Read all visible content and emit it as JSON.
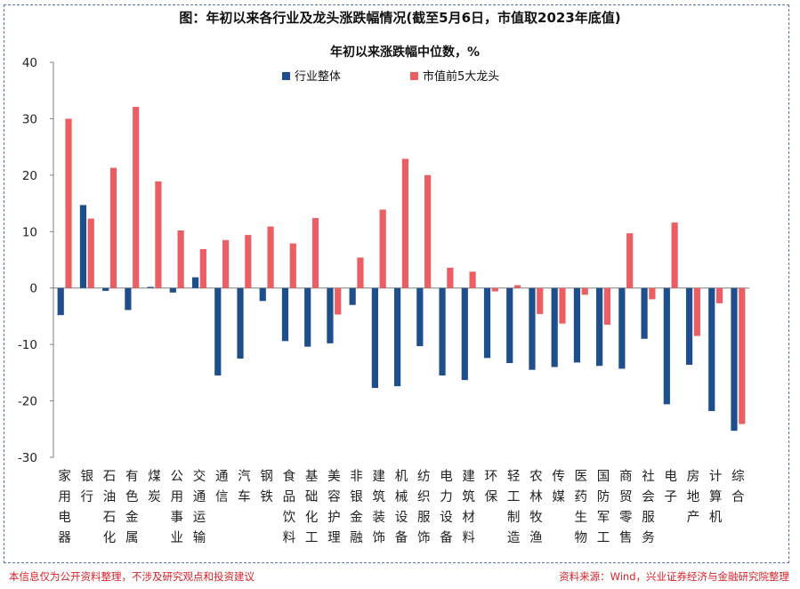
{
  "header": {
    "title": "图：年初以来各行业及龙头涨跌幅情况(截至5月6日，市值取2023年底值)"
  },
  "footer": {
    "disclaimer": "本信息仅为公开资料整理，不涉及研究观点和投资建议",
    "source": "资料来源：Wind，兴业证券经济与金融研究院整理"
  },
  "chart_data": {
    "type": "bar",
    "subtitle": "年初以来涨跌幅中位数，%",
    "ylim": [
      -30,
      40
    ],
    "yticks": [
      -30,
      -20,
      -10,
      0,
      10,
      20,
      30,
      40
    ],
    "grid": false,
    "legend_position": "top-center",
    "categories": [
      "家用电器",
      "银行",
      "石油石化",
      "有色金属",
      "煤炭",
      "公用事业",
      "交通运输",
      "通信",
      "汽车",
      "钢铁",
      "食品饮料",
      "基础化工",
      "美容护理",
      "非银金融",
      "建筑装饰",
      "机械设备",
      "纺织服饰",
      "电力设备",
      "建筑材料",
      "环保",
      "轻工制造",
      "农林牧渔",
      "传媒",
      "医药生物",
      "国防军工",
      "商贸零售",
      "社会服务",
      "电子",
      "房地产",
      "计算机",
      "综合"
    ],
    "series": [
      {
        "name": "行业整体",
        "color": "#1f4e8c",
        "values": [
          -4.8,
          14.7,
          -0.5,
          -3.9,
          0.2,
          -0.8,
          1.9,
          -15.5,
          -12.5,
          -2.3,
          -9.4,
          -10.4,
          -9.8,
          -3.0,
          -17.7,
          -17.4,
          -10.3,
          -15.5,
          -16.3,
          -12.4,
          -13.3,
          -14.5,
          -14.0,
          -13.2,
          -13.8,
          -14.3,
          -9.0,
          -20.6,
          -13.6,
          -21.8,
          -25.3
        ]
      },
      {
        "name": "市值前5大龙头",
        "color": "#eb5e63",
        "values": [
          30.0,
          12.3,
          21.3,
          32.1,
          18.9,
          10.2,
          6.9,
          8.5,
          9.4,
          10.9,
          7.9,
          12.4,
          -4.7,
          5.4,
          13.9,
          22.9,
          20.0,
          3.6,
          2.9,
          -0.6,
          0.5,
          -4.6,
          -6.3,
          -1.2,
          -6.5,
          9.7,
          -2.0,
          11.6,
          -8.5,
          -2.7,
          -24.1
        ]
      }
    ]
  }
}
